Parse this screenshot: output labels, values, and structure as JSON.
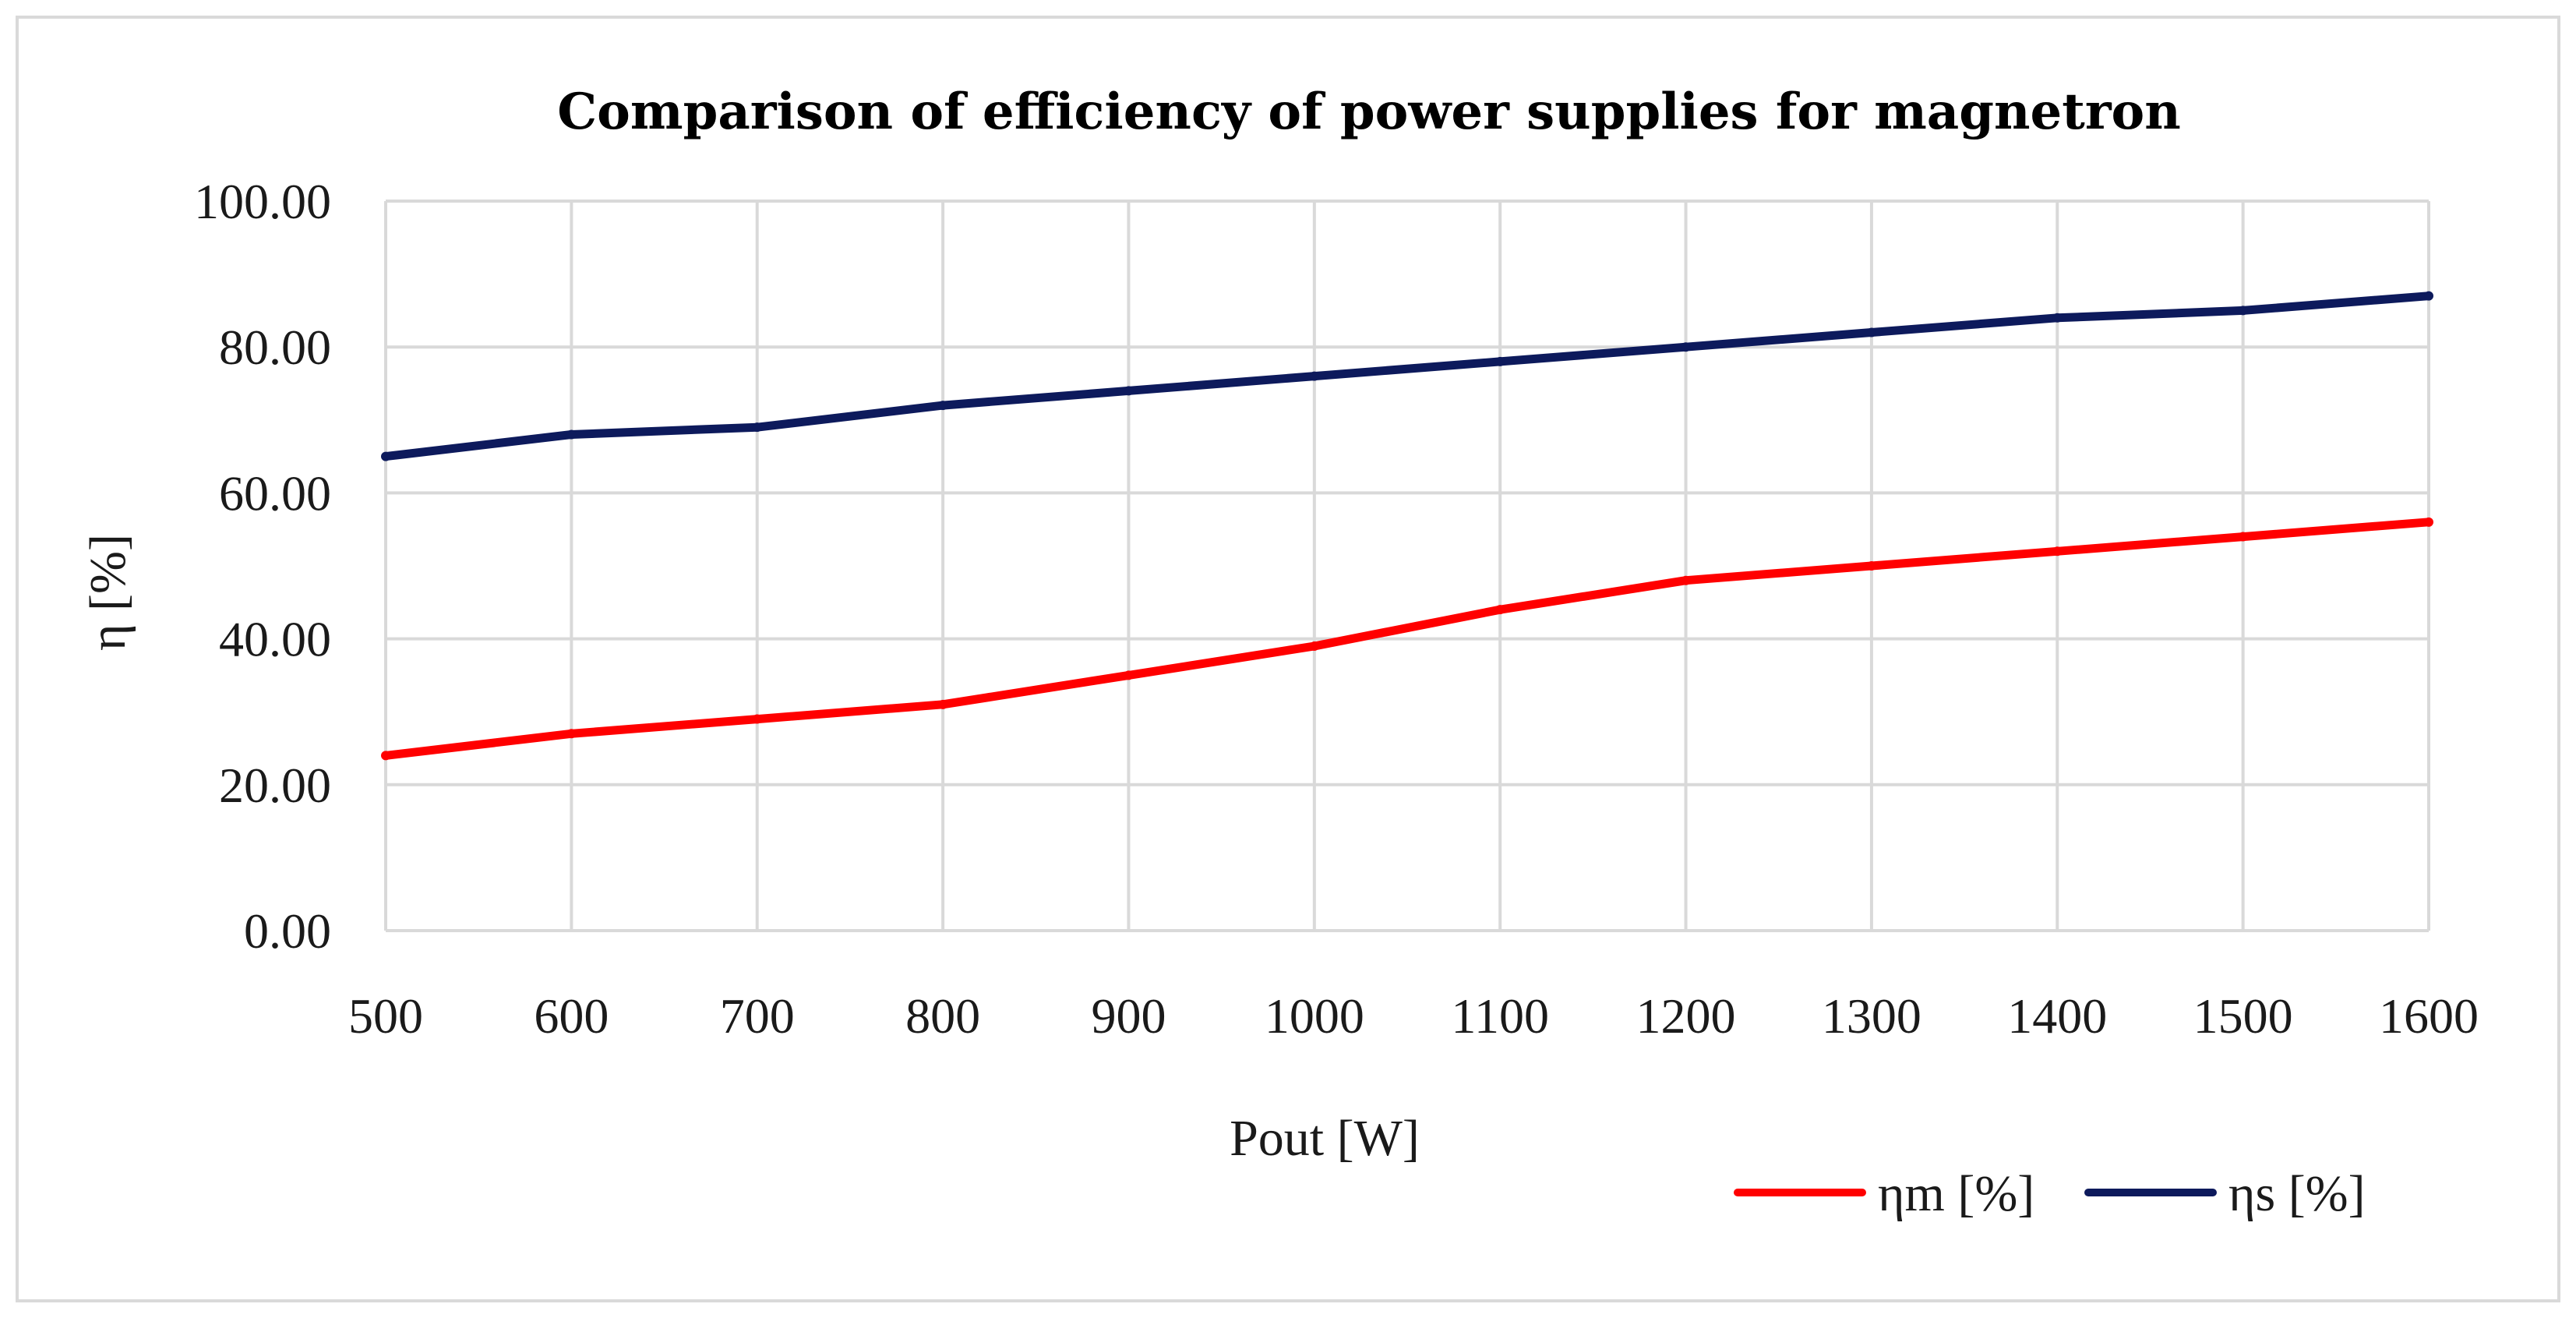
{
  "chart_data": {
    "type": "line",
    "title": "Comparison of efficiency of power supplies for magnetron",
    "xlabel": "Pout [W]",
    "ylabel": "η [%]",
    "categories": [
      "500",
      "600",
      "700",
      "800",
      "900",
      "1000",
      "1100",
      "1200",
      "1300",
      "1400",
      "1500",
      "1600"
    ],
    "y_tick_labels": [
      "0.00",
      "20.00",
      "40.00",
      "60.00",
      "80.00",
      "100.00"
    ],
    "y_ticks": [
      0,
      20,
      40,
      60,
      80,
      100
    ],
    "ylim": [
      0,
      100
    ],
    "grid": true,
    "legend_position": "bottom-right",
    "series": [
      {
        "name": "ηm [%]",
        "color": "#ff0000",
        "values": [
          24,
          27,
          29,
          31,
          35,
          39,
          44,
          48,
          50,
          52,
          54,
          56
        ]
      },
      {
        "name": "ηs [%]",
        "color": "#0d1a5c",
        "values": [
          65,
          68,
          69,
          72,
          74,
          76,
          78,
          80,
          82,
          84,
          85,
          87
        ]
      }
    ]
  }
}
